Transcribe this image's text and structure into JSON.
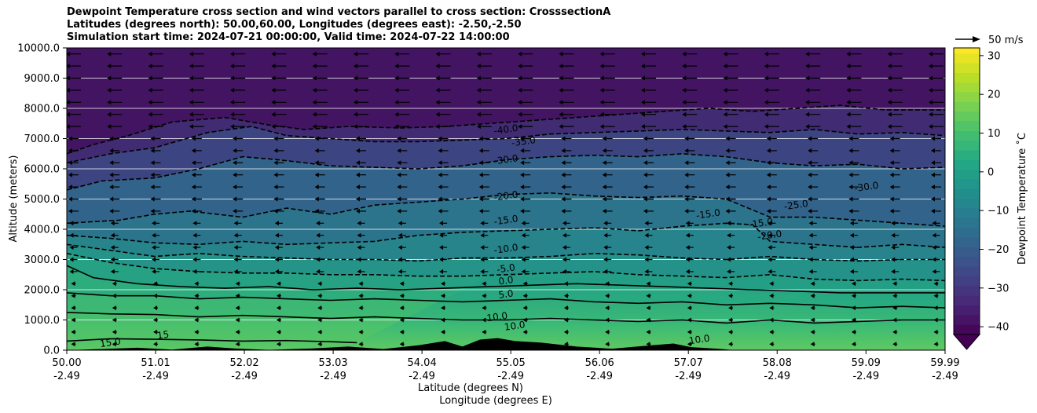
{
  "chart_data": {
    "type": "heatmap",
    "title_lines": [
      "Dewpoint Temperature cross section and wind vectors parallel to cross section: CrosssectionA",
      "Latitudes (degrees north): 50.00,60.00, Longitudes (degrees east): -2.50,-2.50",
      "Simulation start time: 2024-07-21 00:00:00, Valid time: 2024-07-22 14:00:00"
    ],
    "xlabel": "Latitude (degrees N)",
    "xlabel2": "Longitude (degrees E)",
    "ylabel": "Altitude (meters)",
    "x_ticks": [
      {
        "lat": "50.00",
        "lon": "-2.49"
      },
      {
        "lat": "51.01",
        "lon": "-2.49"
      },
      {
        "lat": "52.02",
        "lon": "-2.49"
      },
      {
        "lat": "53.03",
        "lon": "-2.49"
      },
      {
        "lat": "54.04",
        "lon": "-2.49"
      },
      {
        "lat": "55.05",
        "lon": "-2.49"
      },
      {
        "lat": "56.06",
        "lon": "-2.49"
      },
      {
        "lat": "57.07",
        "lon": "-2.49"
      },
      {
        "lat": "58.08",
        "lon": "-2.49"
      },
      {
        "lat": "59.09",
        "lon": "-2.49"
      },
      {
        "lat": "59.99",
        "lon": "-2.49"
      }
    ],
    "xlim": [
      50.0,
      59.99
    ],
    "y_ticks": [
      "0.0",
      "1000.0",
      "2000.0",
      "3000.0",
      "4000.0",
      "5000.0",
      "6000.0",
      "7000.0",
      "8000.0",
      "9000.0",
      "10000.0"
    ],
    "ylim": [
      0,
      10000
    ],
    "grid": "horizontal",
    "colorbar": {
      "label": "Dewpoint Temperature $^\\circ$C",
      "label_display": "Dewpoint Temperature ˚C",
      "ticks": [
        "30",
        "20",
        "10",
        "0",
        "−10",
        "−20",
        "−30",
        "−40"
      ],
      "tick_values": [
        30,
        20,
        10,
        0,
        -10,
        -20,
        -30,
        -40
      ],
      "range": [
        -42,
        32
      ],
      "colormap": "viridis",
      "extend": "min"
    },
    "quiver_key": {
      "label": "50 m/s",
      "speed": 50
    },
    "contour_labels": [
      {
        "text": "-40.0",
        "lat": 55.0,
        "alt": 7200
      },
      {
        "text": "-35.0",
        "lat": 55.2,
        "alt": 6800
      },
      {
        "text": "-30.0",
        "lat": 55.0,
        "alt": 6200
      },
      {
        "text": "-20.0",
        "lat": 55.0,
        "alt": 5000
      },
      {
        "text": "-15.0",
        "lat": 55.0,
        "alt": 4200
      },
      {
        "text": "-10.0",
        "lat": 55.0,
        "alt": 3250
      },
      {
        "text": "-5.0",
        "lat": 55.0,
        "alt": 2600
      },
      {
        "text": "0.0",
        "lat": 55.0,
        "alt": 2200
      },
      {
        "text": "5.0",
        "lat": 55.0,
        "alt": 1750
      },
      {
        "text": "10.0",
        "lat": 54.9,
        "alt": 1000
      },
      {
        "text": "10.0",
        "lat": 55.1,
        "alt": 700
      },
      {
        "text": "15.0",
        "lat": 50.5,
        "alt": 150
      },
      {
        "text": "15",
        "lat": 51.1,
        "alt": 400
      },
      {
        "text": "-15.0",
        "lat": 57.3,
        "alt": 4400
      },
      {
        "text": "-15.0",
        "lat": 57.9,
        "alt": 4100
      },
      {
        "text": "-20.0",
        "lat": 58.0,
        "alt": 3700
      },
      {
        "text": "-25.0",
        "lat": 58.3,
        "alt": 4700
      },
      {
        "text": "-30.0",
        "lat": 59.1,
        "alt": 5300
      },
      {
        "text": "10.0",
        "lat": 57.2,
        "alt": 250
      }
    ],
    "isolines": [
      {
        "level": 15,
        "dashed": false,
        "points": [
          [
            50.0,
            300
          ],
          [
            50.5,
            380
          ],
          [
            51.0,
            360
          ],
          [
            51.5,
            340
          ],
          [
            52.0,
            300
          ],
          [
            52.5,
            320
          ],
          [
            53.0,
            280
          ],
          [
            53.3,
            250
          ]
        ]
      },
      {
        "level": 10,
        "dashed": false,
        "points": [
          [
            50.0,
            1250
          ],
          [
            50.5,
            1200
          ],
          [
            51.0,
            1180
          ],
          [
            51.5,
            1100
          ],
          [
            52.0,
            1150
          ],
          [
            52.5,
            1100
          ],
          [
            53.0,
            1050
          ],
          [
            53.5,
            1100
          ],
          [
            54.0,
            1050
          ],
          [
            54.5,
            1000
          ],
          [
            55.0,
            1000
          ],
          [
            55.5,
            1050
          ],
          [
            56.0,
            1000
          ],
          [
            56.5,
            950
          ],
          [
            57.0,
            1000
          ],
          [
            57.5,
            900
          ],
          [
            58.0,
            1000
          ],
          [
            58.5,
            900
          ],
          [
            59.0,
            950
          ],
          [
            59.5,
            1000
          ],
          [
            59.99,
            1000
          ]
        ]
      },
      {
        "level": 5,
        "dashed": false,
        "points": [
          [
            50.0,
            1900
          ],
          [
            50.5,
            1800
          ],
          [
            51.0,
            1800
          ],
          [
            51.5,
            1700
          ],
          [
            52.0,
            1750
          ],
          [
            52.5,
            1700
          ],
          [
            53.0,
            1650
          ],
          [
            53.5,
            1700
          ],
          [
            54.0,
            1650
          ],
          [
            54.5,
            1600
          ],
          [
            55.0,
            1650
          ],
          [
            55.5,
            1700
          ],
          [
            56.0,
            1600
          ],
          [
            56.5,
            1550
          ],
          [
            57.0,
            1600
          ],
          [
            57.5,
            1500
          ],
          [
            58.0,
            1550
          ],
          [
            58.5,
            1500
          ],
          [
            59.0,
            1400
          ],
          [
            59.5,
            1450
          ],
          [
            59.99,
            1400
          ]
        ]
      },
      {
        "level": 0,
        "dashed": false,
        "points": [
          [
            50.0,
            2800
          ],
          [
            50.3,
            2400
          ],
          [
            50.8,
            2200
          ],
          [
            51.3,
            2100
          ],
          [
            51.8,
            2050
          ],
          [
            52.3,
            2100
          ],
          [
            52.8,
            2000
          ],
          [
            53.3,
            2050
          ],
          [
            53.8,
            2000
          ],
          [
            54.3,
            2050
          ],
          [
            54.8,
            2100
          ],
          [
            55.3,
            2150
          ],
          [
            55.8,
            2200
          ],
          [
            56.3,
            2150
          ],
          [
            56.8,
            2100
          ],
          [
            57.3,
            2050
          ],
          [
            57.8,
            2000
          ],
          [
            58.3,
            1950
          ],
          [
            58.8,
            1900
          ],
          [
            59.3,
            1900
          ],
          [
            59.99,
            1900
          ]
        ]
      },
      {
        "level": -5,
        "dashed": true,
        "points": [
          [
            50.0,
            3200
          ],
          [
            50.5,
            2900
          ],
          [
            51.0,
            2700
          ],
          [
            51.5,
            2600
          ],
          [
            52.0,
            2550
          ],
          [
            52.5,
            2550
          ],
          [
            53.0,
            2500
          ],
          [
            53.5,
            2500
          ],
          [
            54.0,
            2450
          ],
          [
            54.5,
            2450
          ],
          [
            55.0,
            2500
          ],
          [
            55.5,
            2550
          ],
          [
            56.0,
            2600
          ],
          [
            56.5,
            2500
          ],
          [
            57.0,
            2450
          ],
          [
            57.5,
            2400
          ],
          [
            58.0,
            2500
          ],
          [
            58.5,
            2350
          ],
          [
            59.0,
            2300
          ],
          [
            59.5,
            2350
          ],
          [
            59.99,
            2300
          ]
        ]
      },
      {
        "level": -10,
        "dashed": true,
        "points": [
          [
            50.0,
            3500
          ],
          [
            50.5,
            3300
          ],
          [
            51.0,
            3100
          ],
          [
            51.5,
            3200
          ],
          [
            52.0,
            3100
          ],
          [
            52.5,
            3050
          ],
          [
            53.0,
            3000
          ],
          [
            53.5,
            3000
          ],
          [
            54.0,
            2950
          ],
          [
            54.5,
            3050
          ],
          [
            55.0,
            3050
          ],
          [
            55.5,
            3100
          ],
          [
            56.0,
            3200
          ],
          [
            56.5,
            3150
          ],
          [
            57.0,
            3050
          ],
          [
            57.5,
            3000
          ],
          [
            58.0,
            3100
          ],
          [
            58.5,
            3000
          ],
          [
            59.0,
            2950
          ],
          [
            59.5,
            3000
          ],
          [
            59.99,
            3000
          ]
        ]
      },
      {
        "level": -15,
        "dashed": true,
        "points": [
          [
            50.0,
            3800
          ],
          [
            50.5,
            3700
          ],
          [
            51.0,
            3550
          ],
          [
            51.5,
            3500
          ],
          [
            52.0,
            3600
          ],
          [
            52.5,
            3500
          ],
          [
            53.0,
            3550
          ],
          [
            53.5,
            3600
          ],
          [
            54.0,
            3800
          ],
          [
            54.5,
            3900
          ],
          [
            55.0,
            3950
          ],
          [
            55.5,
            4000
          ],
          [
            56.0,
            4050
          ],
          [
            56.5,
            3950
          ],
          [
            57.0,
            4100
          ],
          [
            57.5,
            4200
          ],
          [
            57.8,
            4150
          ],
          [
            58.0,
            3600
          ],
          [
            58.5,
            3500
          ],
          [
            59.0,
            3400
          ],
          [
            59.5,
            3500
          ],
          [
            59.99,
            3400
          ]
        ]
      },
      {
        "level": -20,
        "dashed": true,
        "points": [
          [
            50.0,
            4200
          ],
          [
            50.6,
            4300
          ],
          [
            51.0,
            4500
          ],
          [
            51.4,
            4600
          ],
          [
            52.0,
            4400
          ],
          [
            52.5,
            4700
          ],
          [
            53.0,
            4500
          ],
          [
            53.5,
            4800
          ],
          [
            54.0,
            4900
          ],
          [
            54.5,
            5000
          ],
          [
            55.0,
            5150
          ],
          [
            55.5,
            5200
          ],
          [
            56.0,
            5100
          ],
          [
            56.5,
            5050
          ],
          [
            57.0,
            5100
          ],
          [
            57.5,
            5000
          ],
          [
            58.0,
            4400
          ],
          [
            58.5,
            4400
          ],
          [
            59.0,
            4300
          ],
          [
            59.5,
            4200
          ],
          [
            59.99,
            4100
          ]
        ]
      },
      {
        "level": -30,
        "dashed": true,
        "points": [
          [
            50.0,
            5300
          ],
          [
            50.4,
            5600
          ],
          [
            51.0,
            5700
          ],
          [
            51.5,
            6000
          ],
          [
            52.0,
            6400
          ],
          [
            52.4,
            6300
          ],
          [
            53.0,
            6100
          ],
          [
            53.5,
            6050
          ],
          [
            54.0,
            6000
          ],
          [
            54.5,
            6100
          ],
          [
            55.0,
            6300
          ],
          [
            55.5,
            6400
          ],
          [
            56.0,
            6450
          ],
          [
            56.5,
            6400
          ],
          [
            57.0,
            6500
          ],
          [
            57.5,
            6400
          ],
          [
            58.0,
            6200
          ],
          [
            58.5,
            6100
          ],
          [
            59.0,
            6150
          ],
          [
            59.5,
            6000
          ],
          [
            59.99,
            6050
          ]
        ]
      },
      {
        "level": -35,
        "dashed": true,
        "points": [
          [
            50.0,
            6200
          ],
          [
            50.5,
            6500
          ],
          [
            51.0,
            6700
          ],
          [
            51.6,
            7200
          ],
          [
            52.1,
            7400
          ],
          [
            52.5,
            7100
          ],
          [
            53.0,
            7000
          ],
          [
            53.5,
            6900
          ],
          [
            54.0,
            6900
          ],
          [
            54.5,
            6950
          ],
          [
            55.0,
            7000
          ],
          [
            55.5,
            7150
          ],
          [
            56.0,
            7200
          ],
          [
            56.5,
            7250
          ],
          [
            57.0,
            7300
          ],
          [
            57.5,
            7250
          ],
          [
            58.0,
            7200
          ],
          [
            58.5,
            7300
          ],
          [
            59.0,
            7150
          ],
          [
            59.5,
            7200
          ],
          [
            59.99,
            7100
          ]
        ]
      },
      {
        "level": -40,
        "dashed": true,
        "points": [
          [
            50.0,
            6500
          ],
          [
            50.3,
            6800
          ],
          [
            50.7,
            7100
          ],
          [
            51.2,
            7550
          ],
          [
            51.8,
            7700
          ],
          [
            52.3,
            7450
          ],
          [
            52.7,
            7300
          ],
          [
            53.2,
            7400
          ],
          [
            53.8,
            7350
          ],
          [
            54.3,
            7400
          ],
          [
            54.8,
            7500
          ],
          [
            55.3,
            7600
          ],
          [
            55.8,
            7700
          ],
          [
            56.3,
            7800
          ],
          [
            56.8,
            7900
          ],
          [
            57.3,
            8000
          ],
          [
            57.8,
            7900
          ],
          [
            58.3,
            8000
          ],
          [
            58.8,
            8100
          ],
          [
            59.3,
            7950
          ],
          [
            59.99,
            7950
          ]
        ]
      }
    ],
    "terrain": [
      [
        50.0,
        0
      ],
      [
        50.5,
        50
      ],
      [
        50.8,
        80
      ],
      [
        51.2,
        20
      ],
      [
        51.6,
        120
      ],
      [
        51.9,
        60
      ],
      [
        52.3,
        10
      ],
      [
        52.8,
        60
      ],
      [
        53.2,
        120
      ],
      [
        53.6,
        40
      ],
      [
        54.0,
        160
      ],
      [
        54.3,
        300
      ],
      [
        54.5,
        120
      ],
      [
        54.7,
        350
      ],
      [
        54.9,
        400
      ],
      [
        55.1,
        300
      ],
      [
        55.4,
        250
      ],
      [
        55.8,
        120
      ],
      [
        56.2,
        50
      ],
      [
        56.6,
        150
      ],
      [
        56.9,
        220
      ],
      [
        57.1,
        100
      ],
      [
        57.4,
        50
      ],
      [
        57.6,
        0
      ]
    ]
  }
}
